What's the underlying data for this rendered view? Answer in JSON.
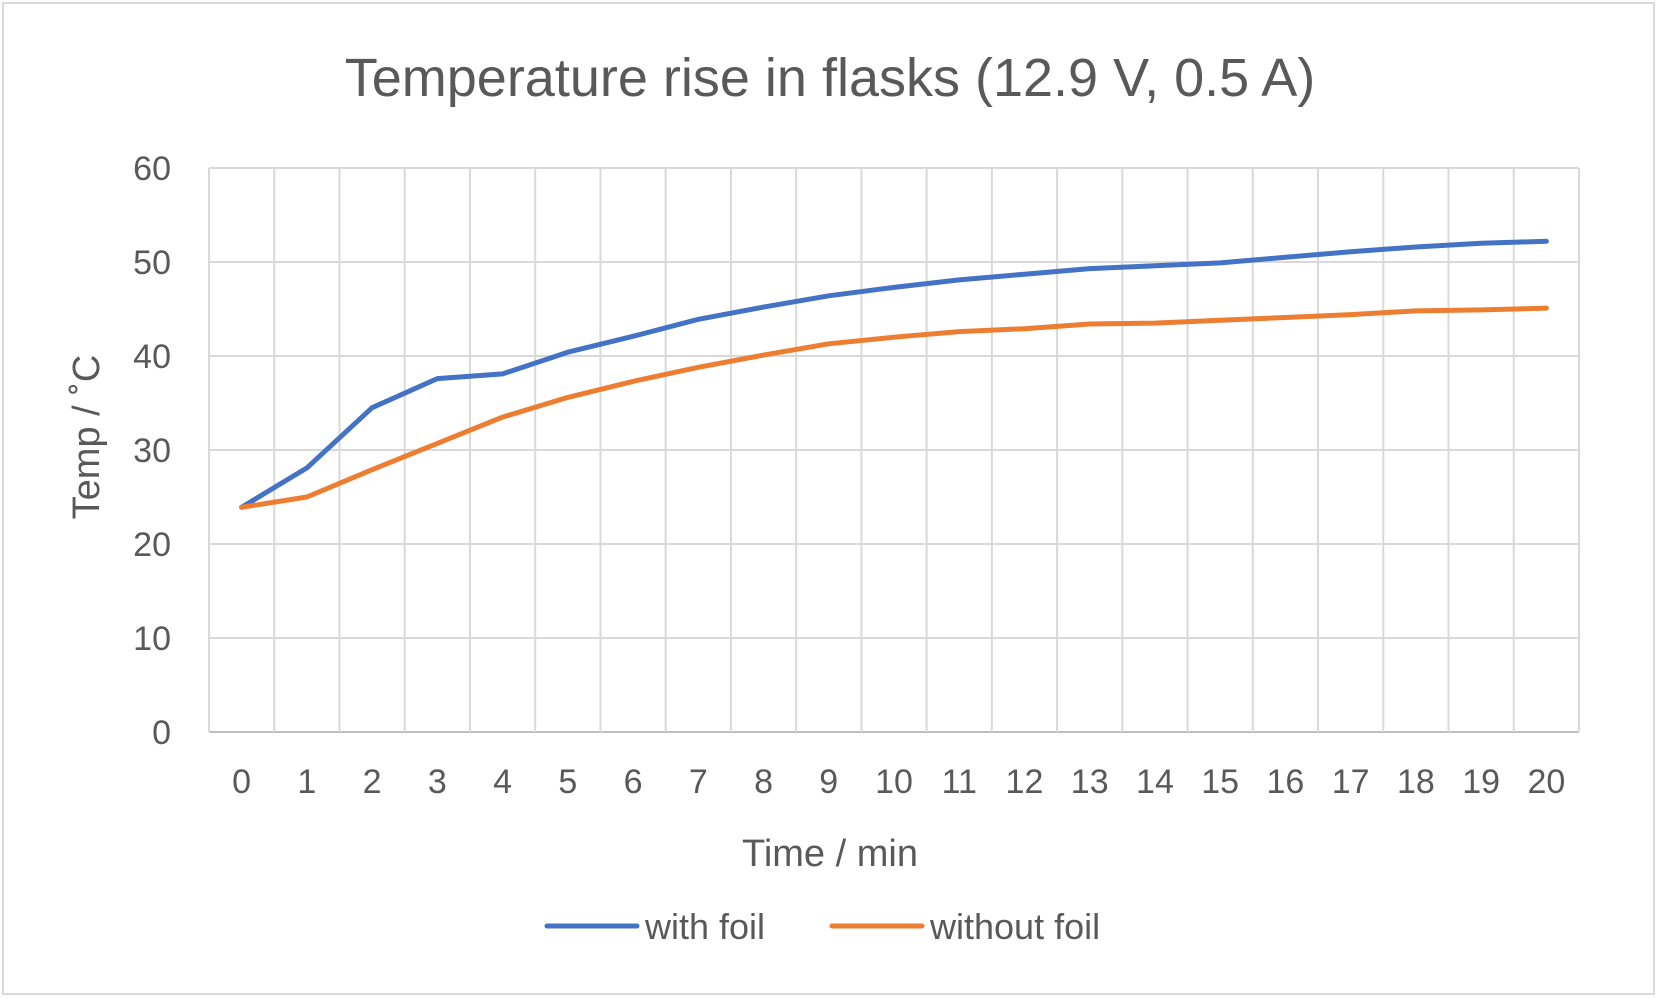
{
  "chart_data": {
    "type": "line",
    "title": "Temperature rise in flasks (12.9 V, 0.5 A)",
    "xlabel": "Time / min",
    "ylabel": "Temp / ˚C",
    "x": [
      0,
      1,
      2,
      3,
      4,
      5,
      6,
      7,
      8,
      9,
      10,
      11,
      12,
      13,
      14,
      15,
      16,
      17,
      18,
      19,
      20
    ],
    "ylim": [
      0,
      60
    ],
    "yticks": [
      0,
      10,
      20,
      30,
      40,
      50,
      60
    ],
    "grid": true,
    "legend_position": "bottom",
    "series": [
      {
        "name": "with foil",
        "color": "#4472c4",
        "values": [
          23.9,
          28.1,
          34.5,
          37.6,
          38.1,
          40.4,
          42.1,
          43.9,
          45.2,
          46.4,
          47.3,
          48.1,
          48.7,
          49.3,
          49.6,
          49.9,
          50.5,
          51.1,
          51.6,
          52.0,
          52.2
        ]
      },
      {
        "name": "without foil",
        "color": "#ed7d31",
        "values": [
          23.9,
          25.0,
          27.9,
          30.7,
          33.5,
          35.6,
          37.3,
          38.8,
          40.1,
          41.3,
          42.0,
          42.6,
          42.9,
          43.4,
          43.5,
          43.8,
          44.1,
          44.4,
          44.8,
          44.9,
          45.1
        ]
      }
    ]
  }
}
